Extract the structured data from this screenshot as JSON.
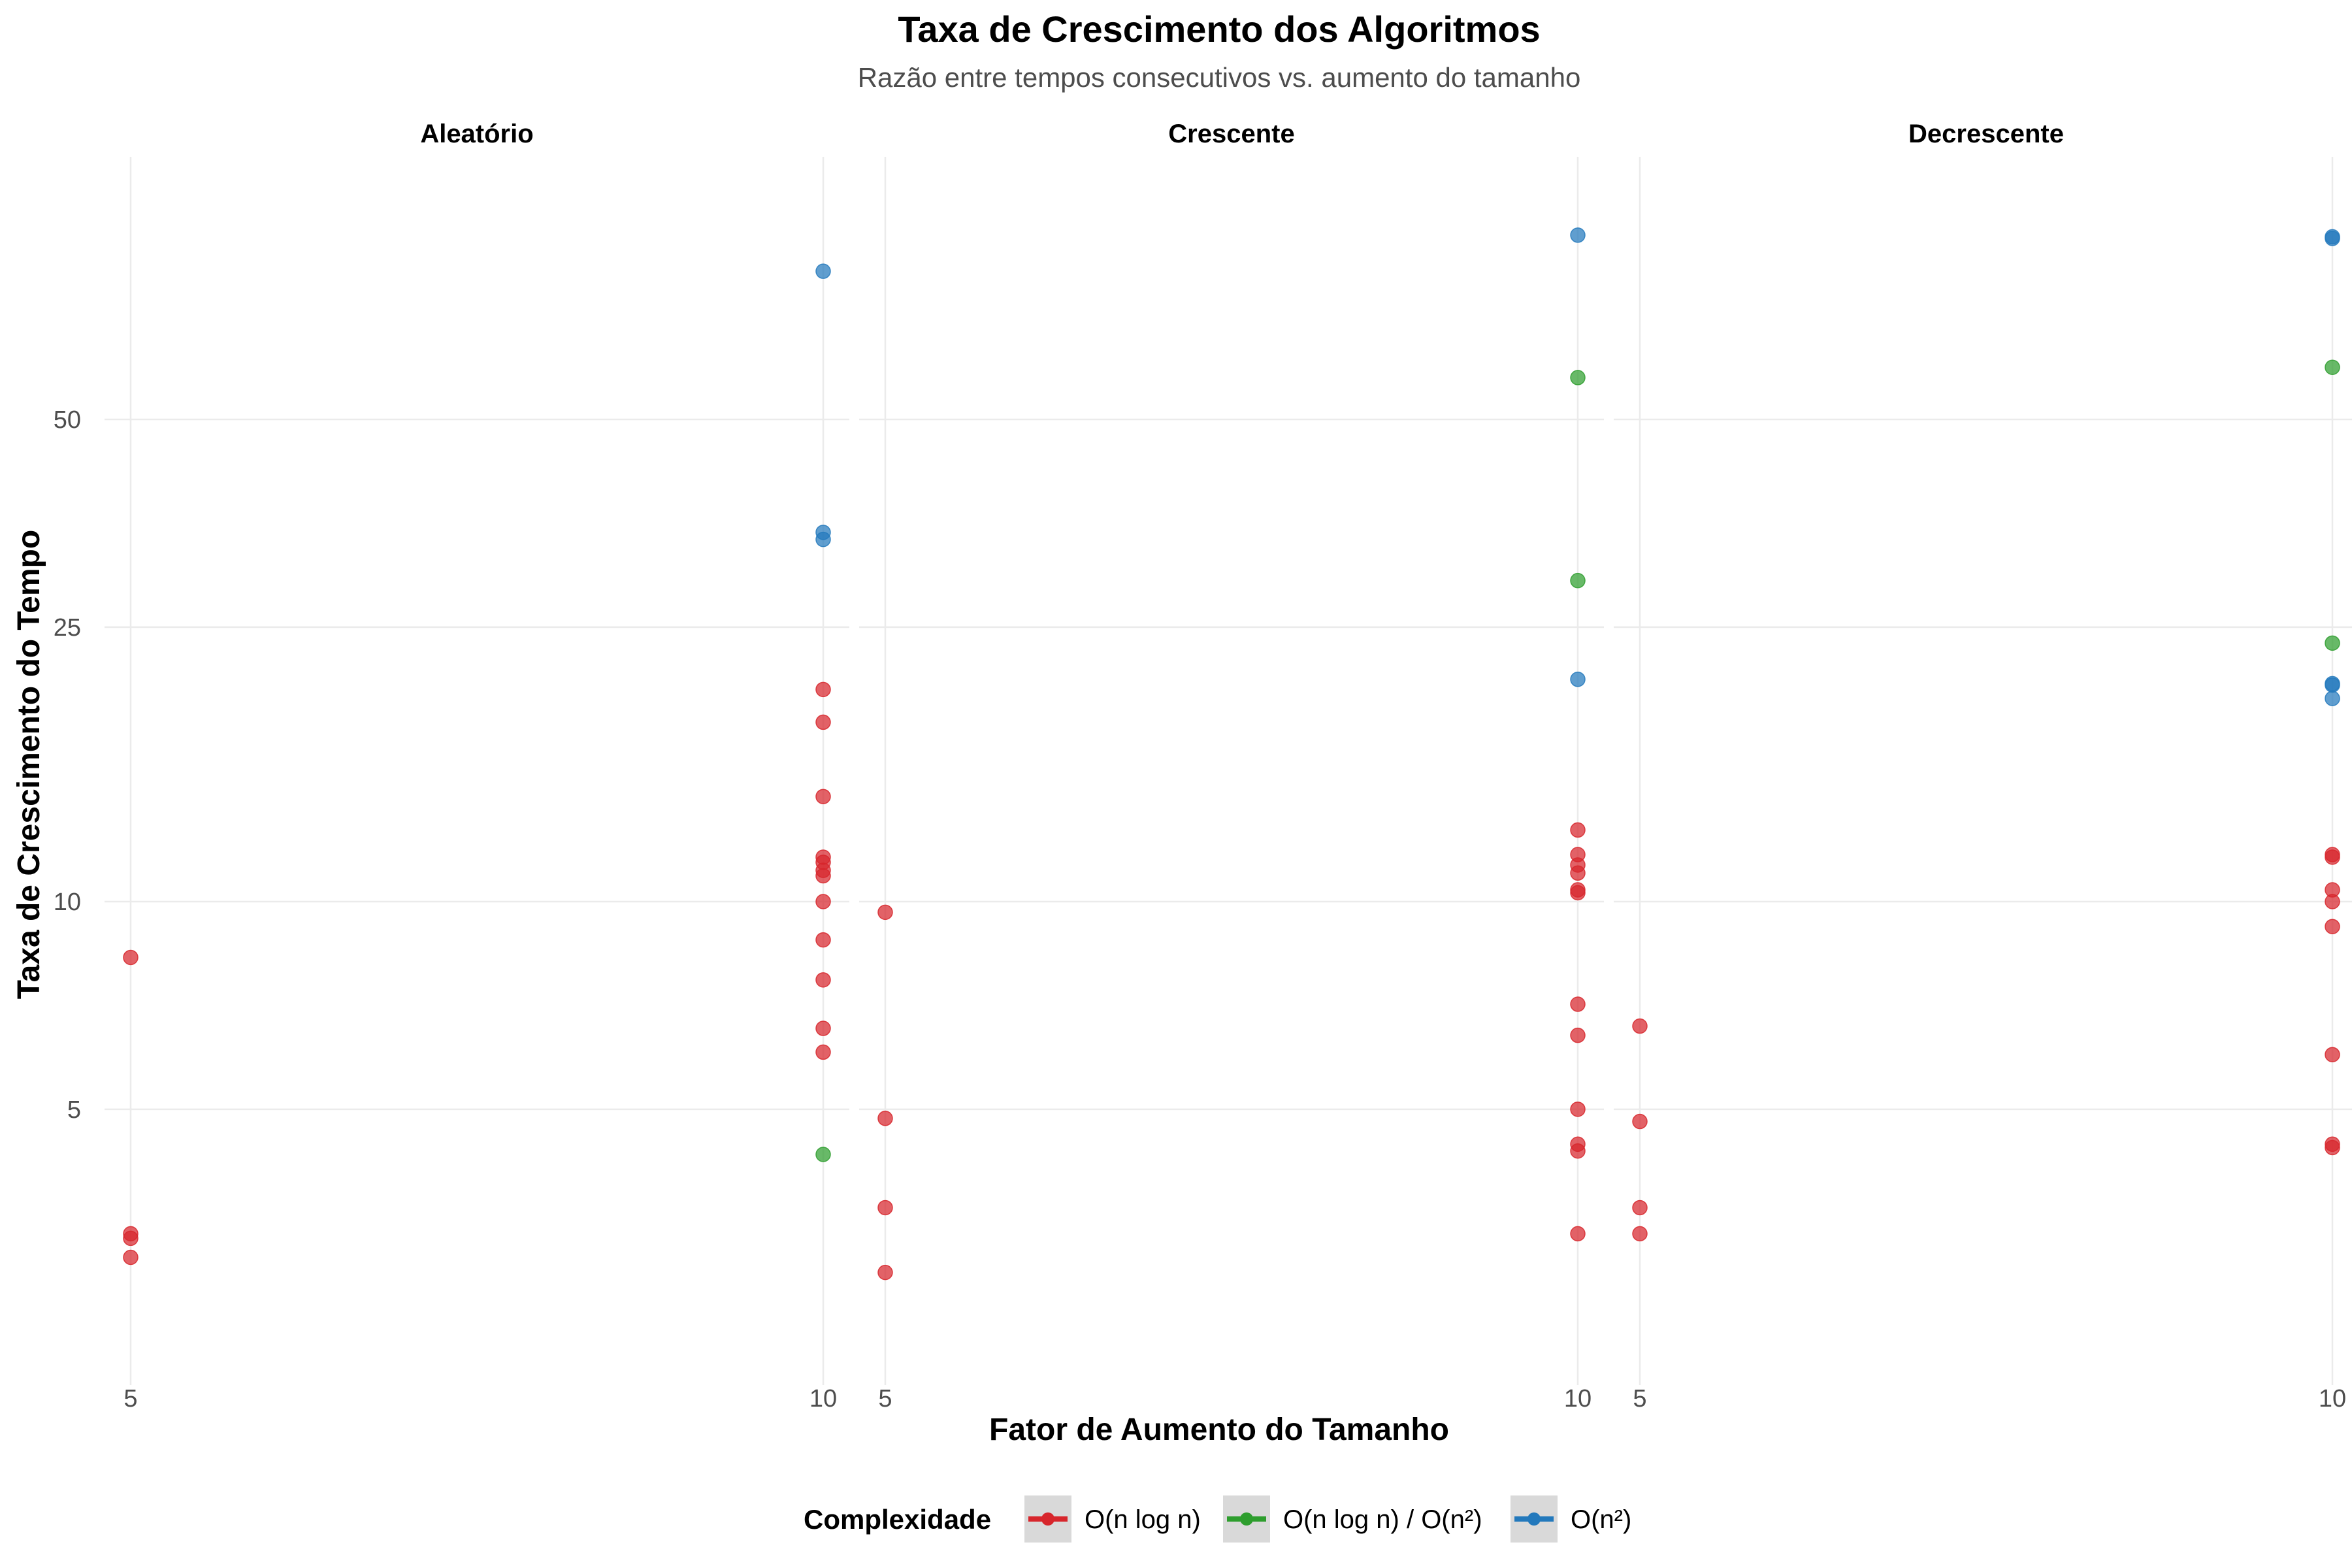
{
  "chart_data": {
    "type": "scatter",
    "title": "Taxa de Crescimento dos Algoritmos",
    "subtitle": "Razão entre tempos consecutivos vs. aumento do tamanho",
    "xlabel": "Fator de Aumento do Tamanho",
    "ylabel": "Taxa de Crescimento do Tempo",
    "y_scale": "log",
    "y_ticks": [
      5,
      10,
      25,
      50
    ],
    "x_ticks": [
      5,
      10
    ],
    "ylim": [
      2.6,
      135
    ],
    "grid": true,
    "legend": {
      "title": "Complexidade",
      "position": "bottom",
      "entries": [
        {
          "name": "O(n log n)",
          "color": "#D7262C"
        },
        {
          "name": "O(n log n) / O(n²)",
          "color": "#2E9E2E"
        },
        {
          "name": "O(n²)",
          "color": "#2379BC"
        }
      ]
    },
    "panels": [
      {
        "label": "Aleatório",
        "points": [
          {
            "x": 5,
            "y": 8.3,
            "group": 0
          },
          {
            "x": 5,
            "y": 3.3,
            "group": 0
          },
          {
            "x": 5,
            "y": 3.25,
            "group": 0
          },
          {
            "x": 5,
            "y": 3.05,
            "group": 0
          },
          {
            "x": 10,
            "y": 20.3,
            "group": 0
          },
          {
            "x": 10,
            "y": 18.2,
            "group": 0
          },
          {
            "x": 10,
            "y": 14.2,
            "group": 0
          },
          {
            "x": 10,
            "y": 11.6,
            "group": 0
          },
          {
            "x": 10,
            "y": 11.4,
            "group": 0
          },
          {
            "x": 10,
            "y": 11.1,
            "group": 0
          },
          {
            "x": 10,
            "y": 10.9,
            "group": 0
          },
          {
            "x": 10,
            "y": 10.0,
            "group": 0
          },
          {
            "x": 10,
            "y": 8.8,
            "group": 0
          },
          {
            "x": 10,
            "y": 7.7,
            "group": 0
          },
          {
            "x": 10,
            "y": 6.55,
            "group": 0
          },
          {
            "x": 10,
            "y": 6.05,
            "group": 0
          },
          {
            "x": 10,
            "y": 4.3,
            "group": 1
          },
          {
            "x": 10,
            "y": 82,
            "group": 2
          },
          {
            "x": 10,
            "y": 34.3,
            "group": 2
          },
          {
            "x": 10,
            "y": 33.5,
            "group": 2
          }
        ]
      },
      {
        "label": "Crescente",
        "points": [
          {
            "x": 5,
            "y": 9.65,
            "group": 0
          },
          {
            "x": 5,
            "y": 4.85,
            "group": 0
          },
          {
            "x": 5,
            "y": 3.6,
            "group": 0
          },
          {
            "x": 5,
            "y": 2.9,
            "group": 0
          },
          {
            "x": 10,
            "y": 12.7,
            "group": 0
          },
          {
            "x": 10,
            "y": 11.7,
            "group": 0
          },
          {
            "x": 10,
            "y": 11.3,
            "group": 0
          },
          {
            "x": 10,
            "y": 11.0,
            "group": 0
          },
          {
            "x": 10,
            "y": 10.4,
            "group": 0
          },
          {
            "x": 10,
            "y": 10.3,
            "group": 0
          },
          {
            "x": 10,
            "y": 7.1,
            "group": 0
          },
          {
            "x": 10,
            "y": 6.4,
            "group": 0
          },
          {
            "x": 10,
            "y": 5.0,
            "group": 0
          },
          {
            "x": 10,
            "y": 4.45,
            "group": 0
          },
          {
            "x": 10,
            "y": 4.35,
            "group": 0
          },
          {
            "x": 10,
            "y": 3.3,
            "group": 0
          },
          {
            "x": 10,
            "y": 57.5,
            "group": 1
          },
          {
            "x": 10,
            "y": 29.2,
            "group": 1
          },
          {
            "x": 10,
            "y": 92.5,
            "group": 2
          },
          {
            "x": 10,
            "y": 21.0,
            "group": 2
          }
        ]
      },
      {
        "label": "Decrescente",
        "points": [
          {
            "x": 5,
            "y": 6.6,
            "group": 0
          },
          {
            "x": 5,
            "y": 4.8,
            "group": 0
          },
          {
            "x": 5,
            "y": 3.6,
            "group": 0
          },
          {
            "x": 5,
            "y": 3.3,
            "group": 0
          },
          {
            "x": 10,
            "y": 11.7,
            "group": 0
          },
          {
            "x": 10,
            "y": 11.6,
            "group": 0
          },
          {
            "x": 10,
            "y": 10.4,
            "group": 0
          },
          {
            "x": 10,
            "y": 10.0,
            "group": 0
          },
          {
            "x": 10,
            "y": 9.2,
            "group": 0
          },
          {
            "x": 10,
            "y": 6.0,
            "group": 0
          },
          {
            "x": 10,
            "y": 4.45,
            "group": 0
          },
          {
            "x": 10,
            "y": 4.4,
            "group": 0
          },
          {
            "x": 10,
            "y": 59.5,
            "group": 1
          },
          {
            "x": 10,
            "y": 23.7,
            "group": 1
          },
          {
            "x": 10,
            "y": 92.0,
            "group": 2
          },
          {
            "x": 10,
            "y": 91.5,
            "group": 2
          },
          {
            "x": 10,
            "y": 20.7,
            "group": 2
          },
          {
            "x": 10,
            "y": 20.6,
            "group": 2
          },
          {
            "x": 10,
            "y": 19.7,
            "group": 2
          }
        ]
      }
    ]
  }
}
